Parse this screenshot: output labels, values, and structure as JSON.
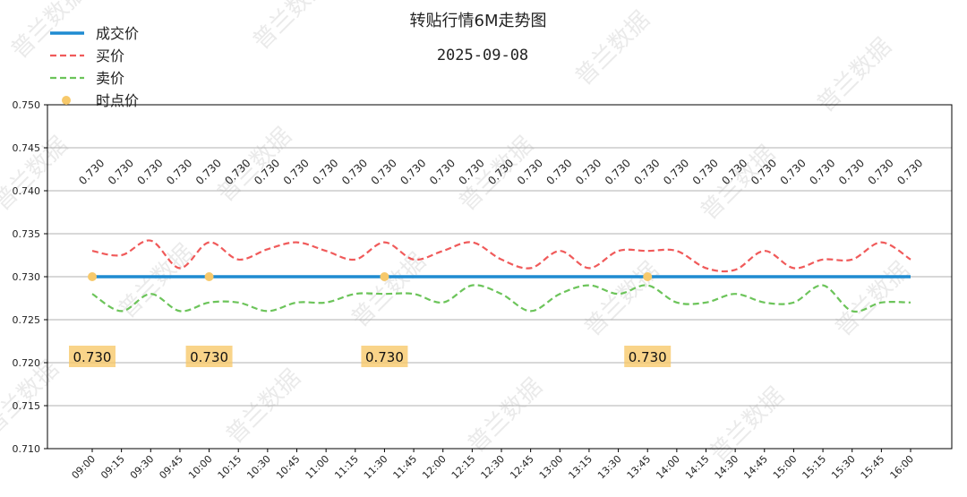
{
  "chart_data": {
    "type": "line",
    "title": "转贴行情6M走势图",
    "subtitle": "2025-09-08",
    "watermark_text": "普兰数据",
    "ylim": [
      0.71,
      0.75
    ],
    "yticks": [
      "0.710",
      "0.715",
      "0.720",
      "0.725",
      "0.730",
      "0.735",
      "0.740",
      "0.745",
      "0.750"
    ],
    "grid": "horizontal",
    "legend_position": "top-left",
    "x": [
      "09:00",
      "09:15",
      "09:30",
      "09:45",
      "10:00",
      "10:15",
      "10:30",
      "10:45",
      "11:00",
      "11:15",
      "11:30",
      "11:45",
      "12:00",
      "12:15",
      "12:30",
      "12:45",
      "13:00",
      "13:15",
      "13:30",
      "13:45",
      "14:00",
      "14:15",
      "14:30",
      "14:45",
      "15:00",
      "15:15",
      "15:30",
      "15:45",
      "16:00"
    ],
    "price_labels": [
      "0.730",
      "0.730",
      "0.730",
      "0.730",
      "0.730",
      "0.730",
      "0.730",
      "0.730",
      "0.730",
      "0.730",
      "0.730",
      "0.730",
      "0.730",
      "0.730",
      "0.730",
      "0.730",
      "0.730",
      "0.730",
      "0.730",
      "0.730",
      "0.730",
      "0.730",
      "0.730",
      "0.730",
      "0.730",
      "0.730",
      "0.730",
      "0.730",
      "0.730"
    ],
    "series": [
      {
        "name": "成交价",
        "style": "solid",
        "color": "#1f8bd1",
        "values": [
          0.73,
          0.73,
          0.73,
          0.73,
          0.73,
          0.73,
          0.73,
          0.73,
          0.73,
          0.73,
          0.73,
          0.73,
          0.73,
          0.73,
          0.73,
          0.73,
          0.73,
          0.73,
          0.73,
          0.73,
          0.73,
          0.73,
          0.73,
          0.73,
          0.73,
          0.73,
          0.73,
          0.73,
          0.73
        ]
      },
      {
        "name": "买价",
        "style": "dashed",
        "color": "#f05a5a",
        "values": [
          0.733,
          0.7325,
          0.7342,
          0.731,
          0.734,
          0.732,
          0.7332,
          0.734,
          0.733,
          0.732,
          0.734,
          0.732,
          0.733,
          0.734,
          0.732,
          0.731,
          0.733,
          0.731,
          0.733,
          0.733,
          0.733,
          0.731,
          0.7308,
          0.733,
          0.731,
          0.732,
          0.732,
          0.734,
          0.732
        ]
      },
      {
        "name": "卖价",
        "style": "dashed",
        "color": "#6cc45a",
        "values": [
          0.728,
          0.726,
          0.728,
          0.726,
          0.727,
          0.727,
          0.726,
          0.727,
          0.727,
          0.728,
          0.728,
          0.728,
          0.727,
          0.729,
          0.728,
          0.726,
          0.728,
          0.729,
          0.728,
          0.729,
          0.727,
          0.727,
          0.728,
          0.727,
          0.727,
          0.729,
          0.726,
          0.727,
          0.727
        ]
      }
    ],
    "point_series": {
      "name": "时点价",
      "color": "#f7c96b",
      "points": [
        {
          "x": "09:00",
          "y": 0.73,
          "label": "0.730"
        },
        {
          "x": "10:00",
          "y": 0.73,
          "label": "0.730"
        },
        {
          "x": "11:30",
          "y": 0.73,
          "label": "0.730"
        },
        {
          "x": "13:45",
          "y": 0.73,
          "label": "0.730"
        }
      ]
    }
  }
}
